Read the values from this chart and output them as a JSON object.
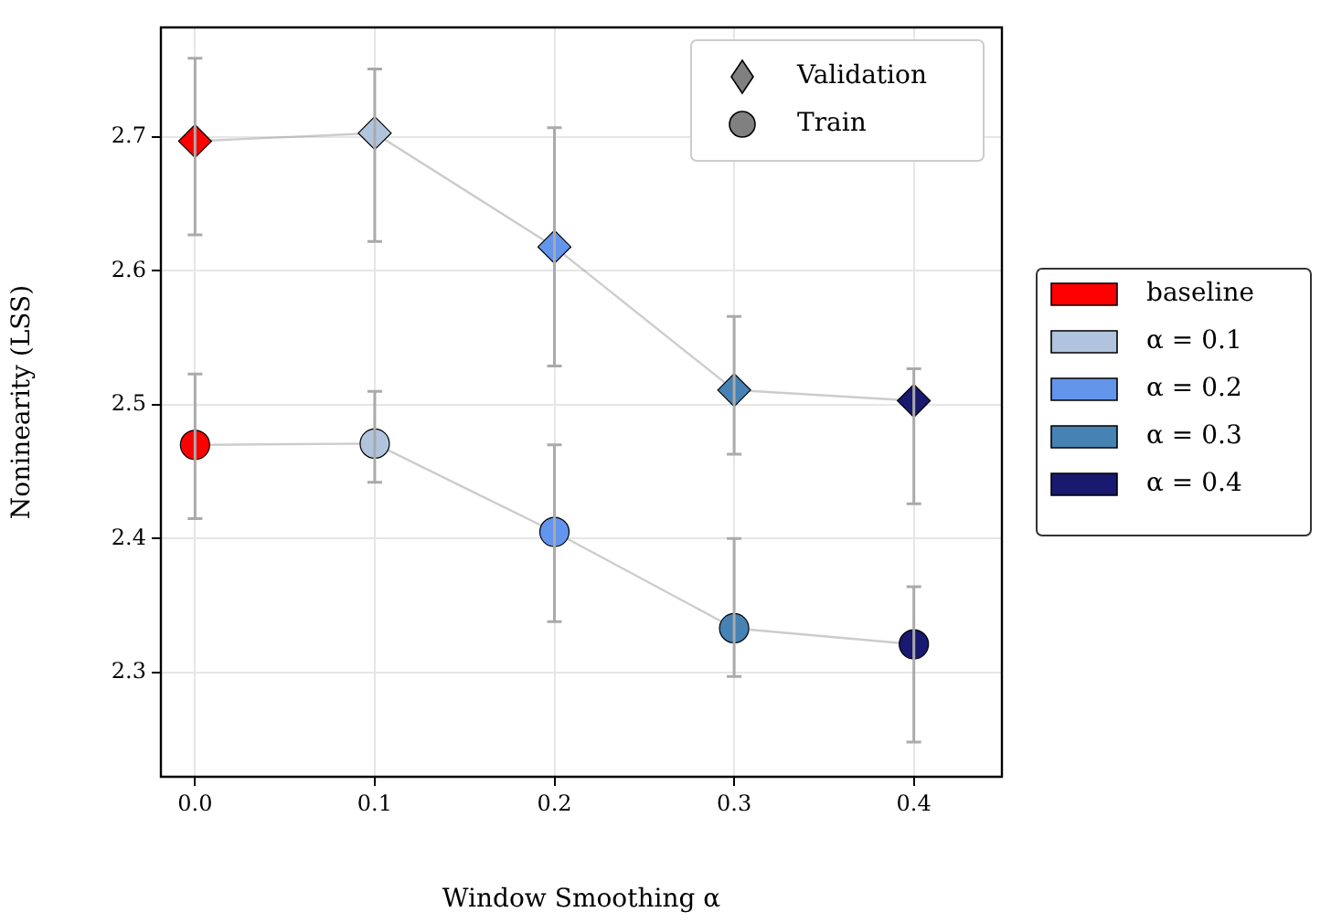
{
  "chart_data": {
    "type": "line",
    "xlabel": "Window Smoothing α",
    "ylabel": "Noninearity (LSS)",
    "x": [
      0.0,
      0.1,
      0.2,
      0.3,
      0.4
    ],
    "xlim": [
      -0.019,
      0.449
    ],
    "xticks": [
      {
        "value": 0,
        "label": "0.0"
      },
      0.1,
      0.2,
      0.3,
      0.4
    ],
    "ylim": [
      2.222,
      2.782
    ],
    "yticks": [
      2.3,
      2.4,
      2.5,
      2.6,
      2.7
    ],
    "grid": true,
    "legend": "top right",
    "series": [
      {
        "name": "Validation",
        "color": "#808080",
        "marker": "diamond",
        "colors": [
          "#ff0000",
          "#b0c4de",
          "#6495ed",
          "#4682b4",
          "#191970"
        ],
        "values": [
          2.697,
          2.703,
          2.618,
          2.511,
          2.503
        ],
        "errors": [
          [
            2.627,
            2.759
          ],
          [
            2.622,
            2.751
          ],
          [
            2.529,
            2.707
          ],
          [
            2.463,
            2.566
          ],
          [
            2.426,
            2.527
          ]
        ]
      },
      {
        "name": "Train",
        "color": "#808080",
        "marker": "circle",
        "colors": [
          "#ff0000",
          "#b0c4de",
          "#6495ed",
          "#4682b4",
          "#191970"
        ],
        "values": [
          2.47,
          2.471,
          2.405,
          2.333,
          2.321
        ],
        "errors": [
          [
            2.415,
            2.523
          ],
          [
            2.442,
            2.51
          ],
          [
            2.338,
            2.47
          ],
          [
            2.297,
            2.4
          ],
          [
            2.248,
            2.364
          ]
        ]
      },
      {
        "name": "baseline",
        "type": "scatter",
        "color": "#ff0000",
        "values": [
          null,
          null,
          null,
          null,
          null
        ]
      },
      {
        "name": "α = 0.1",
        "type": "scatter",
        "color": "#b0c4de",
        "values": [
          null,
          null,
          null,
          null,
          null
        ]
      },
      {
        "name": "α = 0.2",
        "type": "scatter",
        "color": "#6495ed",
        "values": [
          null,
          null,
          null,
          null,
          null
        ]
      },
      {
        "name": "α = 0.3",
        "type": "scatter",
        "color": "#4682b4",
        "values": [
          null,
          null,
          null,
          null,
          null
        ]
      },
      {
        "name": "α = 0.4",
        "type": "scatter",
        "color": "#191970",
        "values": [
          null,
          null,
          null,
          null,
          null
        ]
      }
    ]
  }
}
